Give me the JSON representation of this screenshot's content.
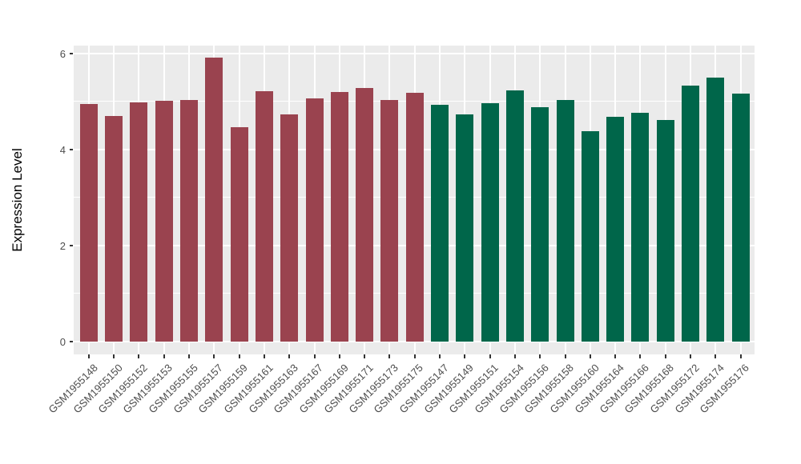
{
  "chart_data": {
    "type": "bar",
    "title": "",
    "xlabel": "",
    "ylabel": "Expression Level",
    "ylim": [
      0,
      6.2
    ],
    "yticks": [
      0,
      2,
      4,
      6
    ],
    "yticks_minor": [
      1,
      3,
      5
    ],
    "grid": "on",
    "legend": "none",
    "panel_background": "#EBEBEB",
    "grid_color": "#FFFFFF",
    "group_colors": {
      "group1": "#9A434F",
      "group2": "#00664A"
    },
    "bars": [
      {
        "label": "GSM1955148",
        "value": 4.95,
        "group": "group1"
      },
      {
        "label": "GSM1955150",
        "value": 4.7,
        "group": "group1"
      },
      {
        "label": "GSM1955152",
        "value": 4.98,
        "group": "group1"
      },
      {
        "label": "GSM1955153",
        "value": 5.02,
        "group": "group1"
      },
      {
        "label": "GSM1955155",
        "value": 5.03,
        "group": "group1"
      },
      {
        "label": "GSM1955157",
        "value": 5.92,
        "group": "group1"
      },
      {
        "label": "GSM1955159",
        "value": 4.46,
        "group": "group1"
      },
      {
        "label": "GSM1955161",
        "value": 5.22,
        "group": "group1"
      },
      {
        "label": "GSM1955163",
        "value": 4.73,
        "group": "group1"
      },
      {
        "label": "GSM1955167",
        "value": 5.06,
        "group": "group1"
      },
      {
        "label": "GSM1955169",
        "value": 5.2,
        "group": "group1"
      },
      {
        "label": "GSM1955171",
        "value": 5.29,
        "group": "group1"
      },
      {
        "label": "GSM1955173",
        "value": 5.03,
        "group": "group1"
      },
      {
        "label": "GSM1955175",
        "value": 5.18,
        "group": "group1"
      },
      {
        "label": "GSM1955147",
        "value": 4.93,
        "group": "group2"
      },
      {
        "label": "GSM1955149",
        "value": 4.74,
        "group": "group2"
      },
      {
        "label": "GSM1955151",
        "value": 4.96,
        "group": "group2"
      },
      {
        "label": "GSM1955154",
        "value": 5.24,
        "group": "group2"
      },
      {
        "label": "GSM1955156",
        "value": 4.89,
        "group": "group2"
      },
      {
        "label": "GSM1955158",
        "value": 5.03,
        "group": "group2"
      },
      {
        "label": "GSM1955160",
        "value": 4.38,
        "group": "group2"
      },
      {
        "label": "GSM1955164",
        "value": 4.69,
        "group": "group2"
      },
      {
        "label": "GSM1955166",
        "value": 4.76,
        "group": "group2"
      },
      {
        "label": "GSM1955168",
        "value": 4.62,
        "group": "group2"
      },
      {
        "label": "GSM1955172",
        "value": 5.33,
        "group": "group2"
      },
      {
        "label": "GSM1955174",
        "value": 5.5,
        "group": "group2"
      },
      {
        "label": "GSM1955176",
        "value": 5.17,
        "group": "group2"
      }
    ]
  }
}
